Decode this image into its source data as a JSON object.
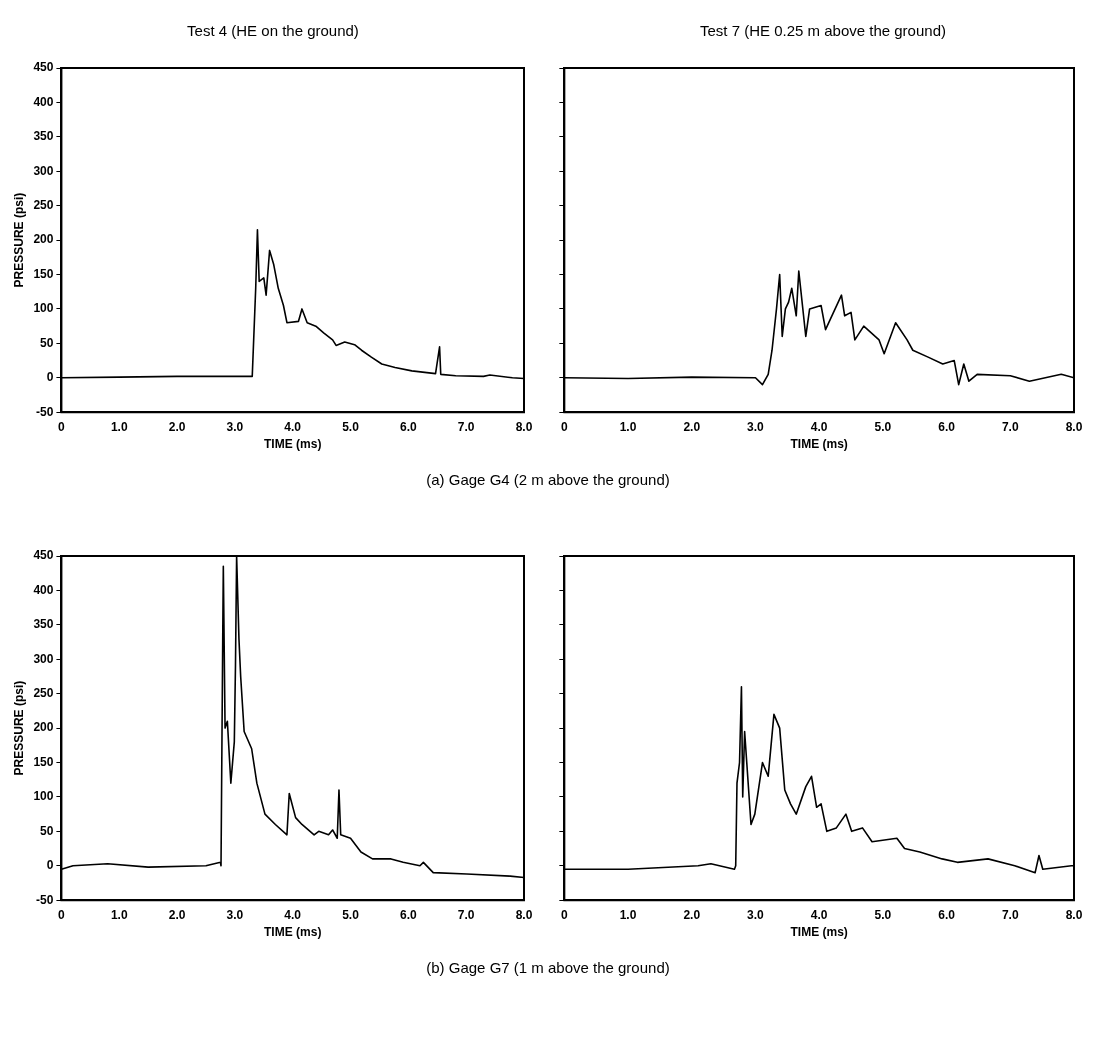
{
  "chart_data": [
    {
      "type": "line",
      "title": "Test 4 (HE on the ground)",
      "xlabel": "TIME (ms)",
      "ylabel": "PRESSURE (psi)",
      "annotations": [
        "(a)  Gage G4 (2 m above the ground)"
      ],
      "marker": "none",
      "line_style": "solid",
      "color": "#000000",
      "x": [
        0,
        1.0,
        2.0,
        3.0,
        3.3,
        3.36,
        3.39,
        3.42,
        3.5,
        3.54,
        3.6,
        3.67,
        3.75,
        3.84,
        3.9,
        4.1,
        4.16,
        4.25,
        4.4,
        4.54,
        4.69,
        4.75,
        4.9,
        5.07,
        5.19,
        5.36,
        5.54,
        5.77,
        6.06,
        6.47,
        6.54,
        6.56,
        6.82,
        7.3,
        7.41,
        7.8,
        8.0
      ],
      "values": [
        0,
        1,
        2,
        2,
        2,
        130,
        215,
        140,
        145,
        120,
        185,
        165,
        130,
        105,
        80,
        82,
        100,
        80,
        75,
        65,
        55,
        47,
        52,
        48,
        40,
        30,
        20,
        15,
        10,
        6,
        45,
        5,
        3,
        2,
        4,
        0,
        -1
      ],
      "xlim": [
        0,
        8
      ],
      "ylim": [
        -50,
        450
      ],
      "xticks": [
        {
          "value": 0,
          "label": "0"
        },
        {
          "value": 1,
          "label": "1.0"
        },
        {
          "value": 2,
          "label": "2.0"
        },
        {
          "value": 3,
          "label": "3.0"
        },
        {
          "value": 4,
          "label": "4.0"
        },
        {
          "value": 5,
          "label": "5.0"
        },
        {
          "value": 6,
          "label": "6.0"
        },
        {
          "value": 7,
          "label": "7.0"
        },
        {
          "value": 8,
          "label": "8.0"
        }
      ],
      "yticks": [
        -50,
        0,
        50,
        100,
        150,
        200,
        250,
        300,
        350,
        400,
        450
      ]
    },
    {
      "type": "line",
      "title": "Test 7 (HE 0.25 m above the ground)",
      "xlabel": "TIME (ms)",
      "marker": "none",
      "line_style": "solid",
      "color": "#000000",
      "tick_labels": "x",
      "x": [
        0,
        1.0,
        2.0,
        3.0,
        3.11,
        3.2,
        3.26,
        3.33,
        3.38,
        3.42,
        3.47,
        3.52,
        3.57,
        3.64,
        3.68,
        3.79,
        3.85,
        4.03,
        4.1,
        4.35,
        4.4,
        4.5,
        4.56,
        4.7,
        4.94,
        5.02,
        5.2,
        5.38,
        5.47,
        5.71,
        5.94,
        6.12,
        6.19,
        6.27,
        6.35,
        6.48,
        7.0,
        7.3,
        7.8,
        8.0
      ],
      "values": [
        0,
        -1,
        1,
        0,
        -10,
        5,
        40,
        100,
        150,
        60,
        100,
        110,
        130,
        90,
        155,
        60,
        100,
        105,
        70,
        120,
        90,
        95,
        55,
        75,
        55,
        35,
        80,
        55,
        40,
        30,
        20,
        25,
        -10,
        20,
        -5,
        5,
        3,
        -5,
        5,
        0
      ],
      "xlim": [
        0,
        8
      ],
      "ylim": [
        -50,
        450
      ],
      "xticks": [
        {
          "value": 0,
          "label": "0"
        },
        {
          "value": 1,
          "label": "1.0"
        },
        {
          "value": 2,
          "label": "2.0"
        },
        {
          "value": 3,
          "label": "3.0"
        },
        {
          "value": 4,
          "label": "4.0"
        },
        {
          "value": 5,
          "label": "5.0"
        },
        {
          "value": 6,
          "label": "6.0"
        },
        {
          "value": 7,
          "label": "7.0"
        },
        {
          "value": 8,
          "label": "8.0"
        }
      ],
      "yticks": [
        -50,
        0,
        50,
        100,
        150,
        200,
        250,
        300,
        350,
        400,
        450
      ]
    },
    {
      "type": "line",
      "xlabel": "TIME (ms)",
      "ylabel": "PRESSURE (psi)",
      "annotations": [
        "(b)  Gage G7 (1 m above the ground)"
      ],
      "marker": "none",
      "line_style": "solid",
      "color": "#000000",
      "x": [
        0,
        0.2,
        0.8,
        1.5,
        2.5,
        2.75,
        2.76,
        2.79,
        2.8,
        2.83,
        2.87,
        2.93,
        2.99,
        3.01,
        3.03,
        3.07,
        3.1,
        3.16,
        3.29,
        3.38,
        3.52,
        3.7,
        3.9,
        3.94,
        4.05,
        4.16,
        4.37,
        4.45,
        4.62,
        4.69,
        4.77,
        4.8,
        4.83,
        5.0,
        5.18,
        5.38,
        5.7,
        5.91,
        6.2,
        6.26,
        6.43,
        7.01,
        7.76,
        8.0
      ],
      "values": [
        -5,
        0,
        3,
        -2,
        0,
        5,
        0,
        335,
        435,
        200,
        210,
        120,
        180,
        290,
        450,
        330,
        275,
        195,
        170,
        120,
        75,
        60,
        45,
        105,
        70,
        60,
        45,
        50,
        45,
        52,
        40,
        110,
        45,
        40,
        20,
        10,
        10,
        5,
        0,
        5,
        -10,
        -12,
        -15,
        -17
      ],
      "xlim": [
        0,
        8
      ],
      "ylim": [
        -50,
        450
      ],
      "xticks": [
        {
          "value": 0,
          "label": "0"
        },
        {
          "value": 1,
          "label": "1.0"
        },
        {
          "value": 2,
          "label": "2.0"
        },
        {
          "value": 3,
          "label": "3.0"
        },
        {
          "value": 4,
          "label": "4.0"
        },
        {
          "value": 5,
          "label": "5.0"
        },
        {
          "value": 6,
          "label": "6.0"
        },
        {
          "value": 7,
          "label": "7.0"
        },
        {
          "value": 8,
          "label": "8.0"
        }
      ],
      "yticks": [
        -50,
        0,
        50,
        100,
        150,
        200,
        250,
        300,
        350,
        400,
        450
      ]
    },
    {
      "type": "line",
      "xlabel": "TIME (ms)",
      "marker": "none",
      "line_style": "solid",
      "color": "#000000",
      "tick_labels": "x",
      "x": [
        0,
        1.0,
        2.1,
        2.3,
        2.67,
        2.69,
        2.71,
        2.75,
        2.78,
        2.8,
        2.83,
        2.93,
        2.99,
        3.11,
        3.2,
        3.29,
        3.38,
        3.46,
        3.55,
        3.64,
        3.79,
        3.88,
        3.96,
        4.03,
        4.12,
        4.27,
        4.42,
        4.51,
        4.68,
        4.83,
        5.22,
        5.34,
        5.58,
        5.93,
        6.17,
        6.65,
        7.07,
        7.39,
        7.45,
        7.51,
        7.96,
        8.0
      ],
      "values": [
        -5,
        -5,
        0,
        3,
        -5,
        0,
        120,
        150,
        260,
        100,
        195,
        60,
        75,
        150,
        130,
        220,
        200,
        110,
        90,
        75,
        115,
        130,
        85,
        90,
        50,
        55,
        75,
        50,
        55,
        35,
        40,
        25,
        20,
        10,
        5,
        10,
        0,
        -10,
        15,
        -5,
        0,
        0
      ],
      "xlim": [
        0,
        8
      ],
      "ylim": [
        -50,
        450
      ],
      "xticks": [
        {
          "value": 0,
          "label": "0"
        },
        {
          "value": 1,
          "label": "1.0"
        },
        {
          "value": 2,
          "label": "2.0"
        },
        {
          "value": 3,
          "label": "3.0"
        },
        {
          "value": 4,
          "label": "4.0"
        },
        {
          "value": 5,
          "label": "5.0"
        },
        {
          "value": 6,
          "label": "6.0"
        },
        {
          "value": 7,
          "label": "7.0"
        },
        {
          "value": 8,
          "label": "8.0"
        }
      ],
      "yticks": [
        -50,
        0,
        50,
        100,
        150,
        200,
        250,
        300,
        350,
        400,
        450
      ]
    }
  ]
}
